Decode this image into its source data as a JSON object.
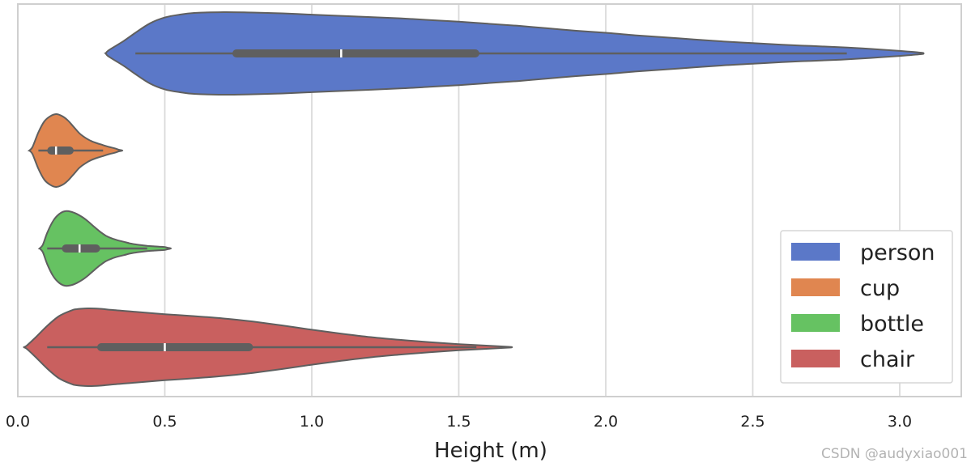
{
  "chart_data": {
    "type": "violin",
    "orientation": "horizontal",
    "xlabel": "Height (m)",
    "ylabel": "",
    "xlim": [
      0.0,
      3.2
    ],
    "xticks": [
      0.0,
      0.5,
      1.0,
      1.5,
      2.0,
      2.5,
      3.0
    ],
    "xtick_labels": [
      "0.0",
      "0.5",
      "1.0",
      "1.5",
      "2.0",
      "2.5",
      "3.0"
    ],
    "grid": "vertical",
    "legend_position": "bottom-right",
    "series": [
      {
        "name": "person",
        "color": "#5b78c8",
        "whisker": [
          0.4,
          2.82
        ],
        "quartiles": [
          0.73,
          1.57
        ],
        "median": 1.1,
        "density": [
          [
            0.31,
            0.08
          ],
          [
            0.36,
            0.3
          ],
          [
            0.4,
            0.5
          ],
          [
            0.45,
            0.73
          ],
          [
            0.5,
            0.87
          ],
          [
            0.55,
            0.94
          ],
          [
            0.6,
            0.98
          ],
          [
            0.7,
            1.0
          ],
          [
            0.8,
            0.99
          ],
          [
            0.9,
            0.97
          ],
          [
            1.0,
            0.94
          ],
          [
            1.1,
            0.91
          ],
          [
            1.2,
            0.88
          ],
          [
            1.3,
            0.85
          ],
          [
            1.4,
            0.81
          ],
          [
            1.5,
            0.77
          ],
          [
            1.6,
            0.72
          ],
          [
            1.7,
            0.67
          ],
          [
            1.8,
            0.61
          ],
          [
            1.9,
            0.55
          ],
          [
            2.0,
            0.5
          ],
          [
            2.1,
            0.44
          ],
          [
            2.2,
            0.39
          ],
          [
            2.3,
            0.34
          ],
          [
            2.4,
            0.29
          ],
          [
            2.5,
            0.25
          ],
          [
            2.6,
            0.21
          ],
          [
            2.7,
            0.18
          ],
          [
            2.8,
            0.15
          ],
          [
            2.9,
            0.11
          ],
          [
            3.0,
            0.06
          ],
          [
            3.07,
            0.02
          ]
        ]
      },
      {
        "name": "cup",
        "color": "#e08650",
        "whisker": [
          0.07,
          0.29
        ],
        "quartiles": [
          0.1,
          0.19
        ],
        "median": 0.13,
        "density": [
          [
            0.05,
            0.1
          ],
          [
            0.07,
            0.5
          ],
          [
            0.09,
            0.8
          ],
          [
            0.11,
            0.94
          ],
          [
            0.13,
            1.0
          ],
          [
            0.15,
            0.95
          ],
          [
            0.17,
            0.83
          ],
          [
            0.19,
            0.65
          ],
          [
            0.21,
            0.47
          ],
          [
            0.23,
            0.35
          ],
          [
            0.25,
            0.26
          ],
          [
            0.27,
            0.2
          ],
          [
            0.29,
            0.15
          ],
          [
            0.31,
            0.1
          ],
          [
            0.33,
            0.06
          ],
          [
            0.345,
            0.02
          ]
        ]
      },
      {
        "name": "bottle",
        "color": "#66c262",
        "whisker": [
          0.1,
          0.44
        ],
        "quartiles": [
          0.15,
          0.28
        ],
        "median": 0.21,
        "density": [
          [
            0.085,
            0.1
          ],
          [
            0.1,
            0.42
          ],
          [
            0.12,
            0.74
          ],
          [
            0.14,
            0.92
          ],
          [
            0.16,
            1.0
          ],
          [
            0.18,
            0.99
          ],
          [
            0.2,
            0.93
          ],
          [
            0.22,
            0.84
          ],
          [
            0.24,
            0.72
          ],
          [
            0.26,
            0.58
          ],
          [
            0.28,
            0.45
          ],
          [
            0.3,
            0.34
          ],
          [
            0.32,
            0.27
          ],
          [
            0.34,
            0.22
          ],
          [
            0.36,
            0.18
          ],
          [
            0.38,
            0.14
          ],
          [
            0.4,
            0.11
          ],
          [
            0.42,
            0.09
          ],
          [
            0.44,
            0.07
          ],
          [
            0.46,
            0.06
          ],
          [
            0.48,
            0.05
          ],
          [
            0.5,
            0.04
          ],
          [
            0.51,
            0.02
          ]
        ]
      },
      {
        "name": "chair",
        "color": "#c9605f",
        "whisker": [
          0.1,
          1.56
        ],
        "quartiles": [
          0.27,
          0.8
        ],
        "median": 0.5,
        "density": [
          [
            0.03,
            0.04
          ],
          [
            0.06,
            0.25
          ],
          [
            0.1,
            0.55
          ],
          [
            0.14,
            0.8
          ],
          [
            0.18,
            0.94
          ],
          [
            0.2,
            0.98
          ],
          [
            0.24,
            1.0
          ],
          [
            0.28,
            0.99
          ],
          [
            0.32,
            0.96
          ],
          [
            0.4,
            0.91
          ],
          [
            0.5,
            0.85
          ],
          [
            0.6,
            0.8
          ],
          [
            0.7,
            0.74
          ],
          [
            0.8,
            0.66
          ],
          [
            0.9,
            0.56
          ],
          [
            1.0,
            0.45
          ],
          [
            1.1,
            0.35
          ],
          [
            1.2,
            0.26
          ],
          [
            1.3,
            0.19
          ],
          [
            1.4,
            0.13
          ],
          [
            1.5,
            0.08
          ],
          [
            1.6,
            0.04
          ],
          [
            1.67,
            0.01
          ]
        ]
      }
    ]
  },
  "watermark": "CSDN @audyxiao001"
}
